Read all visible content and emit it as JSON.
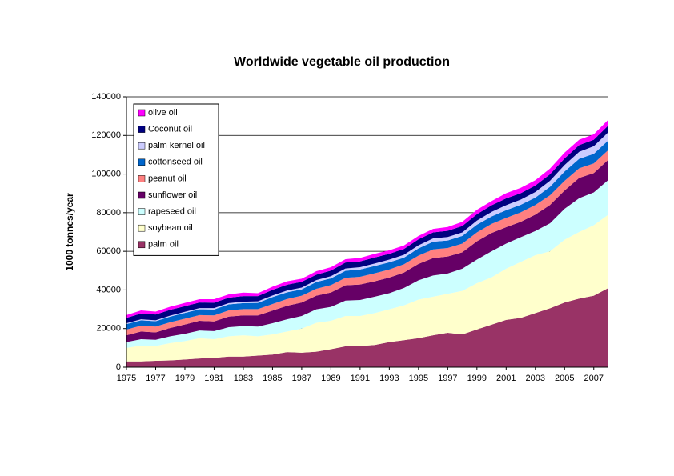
{
  "chart_data": {
    "type": "stacked-area",
    "title": "Worldwide vegetable oil production",
    "y_label": "1000 tonnes/year",
    "x": [
      1975,
      1976,
      1977,
      1978,
      1979,
      1980,
      1981,
      1982,
      1983,
      1984,
      1985,
      1986,
      1987,
      1988,
      1989,
      1990,
      1991,
      1992,
      1993,
      1994,
      1995,
      1996,
      1997,
      1998,
      1999,
      2000,
      2001,
      2002,
      2003,
      2004,
      2005,
      2006,
      2007,
      2008
    ],
    "xlim": [
      1975,
      2008
    ],
    "xticks": [
      1975,
      1977,
      1979,
      1981,
      1983,
      1985,
      1987,
      1989,
      1991,
      1993,
      1995,
      1997,
      1999,
      2001,
      2003,
      2005,
      2007
    ],
    "ylim": [
      0,
      140000
    ],
    "yticks": [
      0,
      20000,
      40000,
      60000,
      80000,
      100000,
      120000,
      140000
    ],
    "grid": true,
    "legend": "top-left",
    "series": [
      {
        "name": "palm oil",
        "color": "#993366",
        "values": [
          3000,
          3000,
          3300,
          3500,
          4000,
          4500,
          4800,
          5500,
          5500,
          6000,
          6500,
          7800,
          7500,
          8000,
          9300,
          10800,
          11000,
          11500,
          13000,
          14000,
          15000,
          16500,
          17800,
          17000,
          19500,
          22000,
          24500,
          25500,
          28000,
          30500,
          33500,
          35500,
          37000,
          41000
        ]
      },
      {
        "name": "soybean oil",
        "color": "#FFFFCC",
        "values": [
          7000,
          8200,
          7700,
          9000,
          9500,
          10500,
          9700,
          10500,
          11000,
          10000,
          10500,
          10700,
          12500,
          15000,
          14700,
          15700,
          15500,
          16500,
          17000,
          18000,
          20000,
          20000,
          20200,
          22500,
          24000,
          24500,
          26500,
          29000,
          30000,
          29500,
          32500,
          34500,
          36500,
          38000
        ]
      },
      {
        "name": "rapeseed oil",
        "color": "#CCFFFF",
        "values": [
          3000,
          3300,
          3200,
          3500,
          3800,
          4000,
          4200,
          4700,
          4800,
          5000,
          5800,
          6300,
          6500,
          7000,
          7200,
          8000,
          8300,
          8500,
          8300,
          9000,
          10000,
          11000,
          10500,
          11500,
          12200,
          13500,
          13000,
          12800,
          12500,
          14500,
          16000,
          17500,
          17000,
          18000
        ]
      },
      {
        "name": "sunflower oil",
        "color": "#660066",
        "values": [
          3500,
          4000,
          3800,
          4300,
          4800,
          5000,
          5000,
          5500,
          5500,
          5800,
          6500,
          7000,
          7000,
          7000,
          7500,
          7900,
          8000,
          8000,
          8100,
          8000,
          8500,
          9000,
          8800,
          8500,
          9500,
          9500,
          8500,
          8000,
          8500,
          9500,
          9500,
          10500,
          10000,
          10500
        ]
      },
      {
        "name": "peanut oil",
        "color": "#FF8080",
        "values": [
          3000,
          3000,
          3000,
          3000,
          3000,
          3000,
          3100,
          3200,
          3300,
          3300,
          3400,
          3500,
          3500,
          3600,
          3800,
          3900,
          4000,
          4100,
          4200,
          4300,
          4300,
          4500,
          4400,
          4500,
          4600,
          4700,
          4800,
          4900,
          5000,
          5000,
          5000,
          5000,
          5000,
          5000
        ]
      },
      {
        "name": "cottonseed oil",
        "color": "#0066CC",
        "values": [
          2800,
          2800,
          2800,
          2900,
          3000,
          3000,
          3100,
          3100,
          3100,
          3200,
          3600,
          3500,
          3300,
          3500,
          3500,
          3600,
          3800,
          3800,
          3700,
          3400,
          3700,
          4000,
          3900,
          4000,
          4000,
          3800,
          4000,
          3900,
          3800,
          4400,
          4800,
          4900,
          5000,
          5000
        ]
      },
      {
        "name": "palm kernel oil",
        "color": "#CCCCFF",
        "values": [
          500,
          500,
          500,
          500,
          600,
          600,
          700,
          700,
          700,
          800,
          800,
          900,
          900,
          1000,
          1100,
          1200,
          1200,
          1300,
          1400,
          1500,
          1600,
          1700,
          1800,
          1800,
          2100,
          2400,
          2600,
          2700,
          2900,
          3100,
          3400,
          3600,
          3900,
          4200
        ]
      },
      {
        "name": "Coconut oil",
        "color": "#000080",
        "values": [
          2700,
          3000,
          3000,
          3000,
          2900,
          2900,
          2800,
          2800,
          2900,
          2700,
          2900,
          3000,
          3000,
          2800,
          2900,
          3100,
          3000,
          3100,
          3000,
          3000,
          3100,
          3100,
          3200,
          3300,
          3300,
          3400,
          3500,
          3300,
          3400,
          3400,
          3400,
          3500,
          3400,
          3500
        ]
      },
      {
        "name": "olive oil",
        "color": "#FF00FF",
        "values": [
          1500,
          1600,
          1500,
          1600,
          1700,
          1700,
          1800,
          1700,
          1800,
          1500,
          1700,
          1800,
          1600,
          1800,
          1800,
          1700,
          1800,
          1900,
          1800,
          1800,
          1800,
          1800,
          2000,
          2200,
          2300,
          2200,
          2700,
          2800,
          2700,
          2900,
          3000,
          2800,
          2800,
          3000
        ]
      }
    ]
  }
}
